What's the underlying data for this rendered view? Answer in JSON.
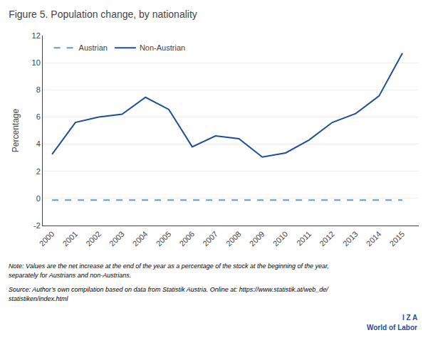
{
  "chart_data": {
    "type": "line",
    "title": "Figure 5. Population change, by nationality",
    "ylabel": "Percentage",
    "x": [
      2000,
      2001,
      2002,
      2003,
      2004,
      2005,
      2006,
      2007,
      2008,
      2009,
      2010,
      2011,
      2012,
      2013,
      2014,
      2015
    ],
    "series": [
      {
        "name": "Non-Austrian",
        "color": "#1f4e97",
        "line_style": "solid",
        "values": [
          3.25,
          5.6,
          6.0,
          6.2,
          7.45,
          6.55,
          3.8,
          4.6,
          4.4,
          3.05,
          3.35,
          4.3,
          5.6,
          6.25,
          7.55,
          10.7
        ]
      },
      {
        "name": "Austrian",
        "color": "#5b9bd5",
        "line_style": "dashed",
        "values": [
          -0.12,
          -0.12,
          -0.12,
          -0.12,
          -0.12,
          -0.12,
          -0.12,
          -0.12,
          -0.12,
          -0.12,
          -0.12,
          -0.12,
          -0.12,
          -0.12,
          -0.12,
          -0.12
        ]
      }
    ],
    "xlim": [
      1999.6,
      2015.7
    ],
    "xticks": [
      2000,
      2001,
      2002,
      2003,
      2004,
      2005,
      2006,
      2007,
      2008,
      2009,
      2010,
      2011,
      2012,
      2013,
      2014,
      2015
    ],
    "ylim": [
      -2,
      12
    ],
    "yticks": [
      -2,
      0,
      2,
      4,
      6,
      8,
      10,
      12
    ],
    "grid": "y",
    "legend": "upper left",
    "annotations": [
      "Note: Values are the net increase at the end of the year as a percentage of the stock at the beginning of the year,",
      "separately for Austrians and non-Austrians.",
      "Source: Author’s own compilation based on data from Statistik Austria. Online at: https://www.statistik.at/web_de/",
      "statistiken/index.html",
      "I Z A",
      "World of Labor"
    ]
  }
}
